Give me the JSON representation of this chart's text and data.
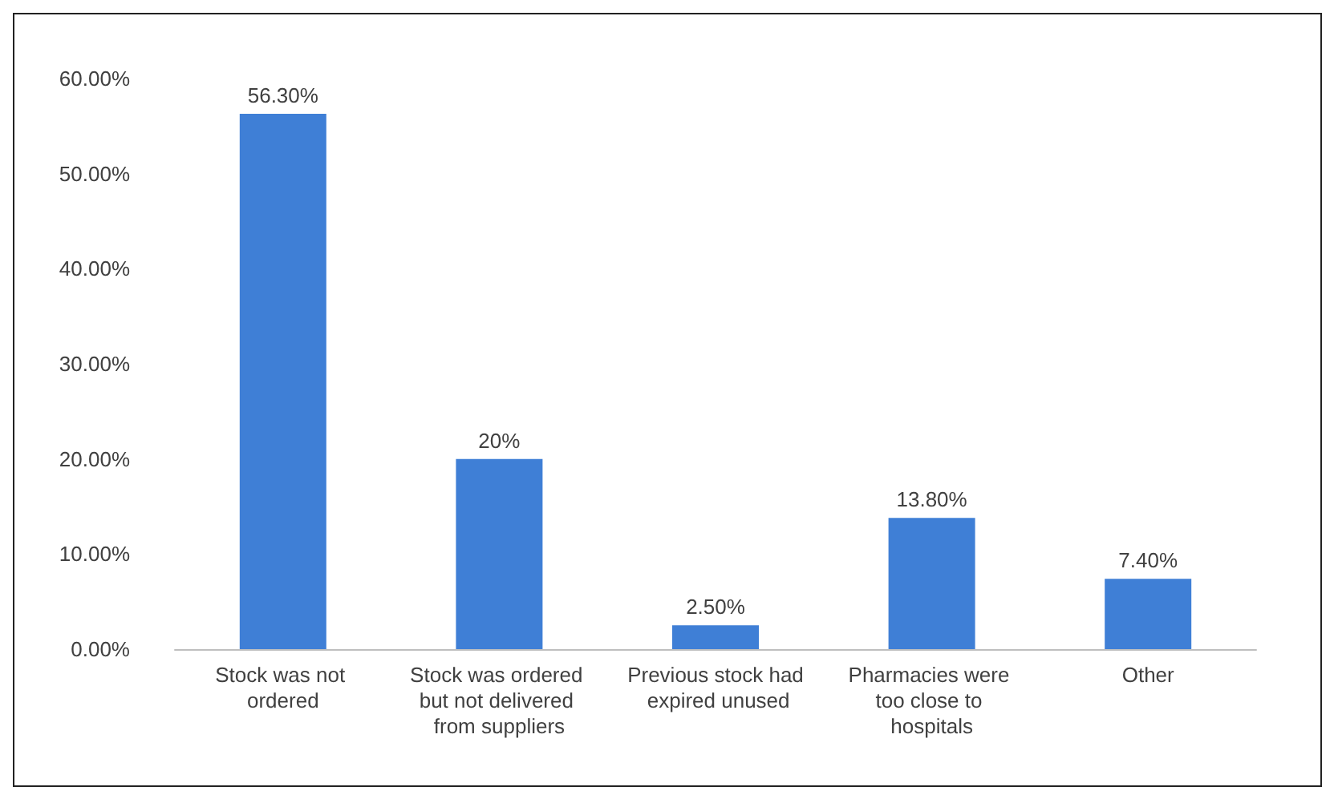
{
  "chart_data": {
    "type": "bar",
    "categories": [
      "Stock was not ordered",
      "Stock was ordered but not delivered from suppliers",
      "Previous stock had expired unused",
      "Pharmacies were too close to hospitals",
      "Other"
    ],
    "values": [
      56.3,
      20,
      2.5,
      13.8,
      7.4
    ],
    "value_labels": [
      "56.30%",
      "20%",
      "2.50%",
      "13.80%",
      "7.40%"
    ],
    "color": "#3f7fd6",
    "ylim": [
      0,
      60
    ],
    "yticks": [
      {
        "value": 0,
        "label": "0.00%"
      },
      {
        "value": 10,
        "label": "10.00%"
      },
      {
        "value": 20,
        "label": "20.00%"
      },
      {
        "value": 30,
        "label": "30.00%"
      },
      {
        "value": 40,
        "label": "40.00%"
      },
      {
        "value": 50,
        "label": "50.00%"
      },
      {
        "value": 60,
        "label": "60.00%"
      }
    ],
    "grid": false
  }
}
